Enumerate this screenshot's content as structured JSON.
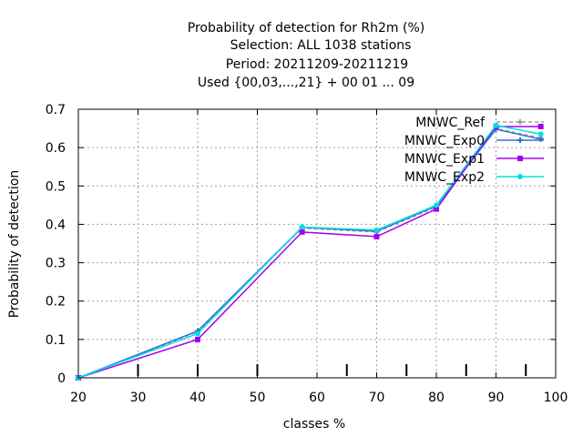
{
  "chart_data": {
    "type": "line",
    "title_lines": [
      "Probability of detection  for Rh2m (%)",
      "Selection: ALL   1038 stations",
      "Period: 20211209-20211219",
      "Used {00,03,...,21} + 00 01 ... 09"
    ],
    "xlabel": "classes %",
    "ylabel": "Probability of detection",
    "xlim": [
      20,
      100
    ],
    "ylim": [
      0,
      0.7
    ],
    "xticks": [
      20,
      30,
      40,
      50,
      60,
      70,
      80,
      90,
      100
    ],
    "yticks": [
      0,
      0.1,
      0.2,
      0.3,
      0.4,
      0.5,
      0.6,
      0.7
    ],
    "minor_x_marks": [
      30,
      40,
      50,
      65,
      75,
      85,
      95
    ],
    "grid": true,
    "legend_position": "top-right",
    "series": [
      {
        "name": "MNWC_Ref",
        "color": "#a0a0a0",
        "dashed": true,
        "x": [
          20,
          40,
          57.5,
          70,
          80,
          90,
          97.5
        ],
        "y": [
          0,
          0.12,
          0.39,
          0.38,
          0.445,
          0.65,
          0.625
        ]
      },
      {
        "name": "MNWC_Exp0",
        "color": "#3070d0",
        "dashed": false,
        "x": [
          20,
          40,
          57.5,
          70,
          80,
          90,
          97.5
        ],
        "y": [
          0,
          0.122,
          0.392,
          0.382,
          0.448,
          0.648,
          0.622
        ]
      },
      {
        "name": "MNWC_Exp1",
        "color": "#a000f0",
        "dashed": false,
        "x": [
          20,
          40,
          57.5,
          70,
          80,
          90,
          97.5
        ],
        "y": [
          0,
          0.1,
          0.38,
          0.368,
          0.44,
          0.655,
          0.655
        ]
      },
      {
        "name": "MNWC_Exp2",
        "color": "#00e0e0",
        "dashed": false,
        "x": [
          20,
          40,
          57.5,
          70,
          80,
          90,
          97.5
        ],
        "y": [
          0,
          0.115,
          0.393,
          0.385,
          0.45,
          0.658,
          0.635
        ]
      }
    ]
  }
}
